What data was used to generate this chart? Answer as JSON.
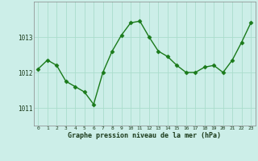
{
  "x": [
    0,
    1,
    2,
    3,
    4,
    5,
    6,
    7,
    8,
    9,
    10,
    11,
    12,
    13,
    14,
    15,
    16,
    17,
    18,
    19,
    20,
    21,
    22,
    23
  ],
  "y": [
    1012.1,
    1012.35,
    1012.2,
    1011.75,
    1011.6,
    1011.45,
    1011.1,
    1012.0,
    1012.6,
    1013.05,
    1013.4,
    1013.45,
    1013.0,
    1012.6,
    1012.45,
    1012.2,
    1012.0,
    1012.0,
    1012.15,
    1012.2,
    1012.0,
    1012.35,
    1012.85,
    1013.4
  ],
  "ylim": [
    1010.5,
    1014.0
  ],
  "yticks": [
    1011,
    1012,
    1013
  ],
  "xticks": [
    0,
    1,
    2,
    3,
    4,
    5,
    6,
    7,
    8,
    9,
    10,
    11,
    12,
    13,
    14,
    15,
    16,
    17,
    18,
    19,
    20,
    21,
    22,
    23
  ],
  "line_color": "#1a7a1a",
  "marker_color": "#1a7a1a",
  "bg_color": "#cceee8",
  "grid_color": "#aaddcc",
  "xlabel": "Graphe pression niveau de la mer (hPa)",
  "fig_bg": "#cceee8"
}
